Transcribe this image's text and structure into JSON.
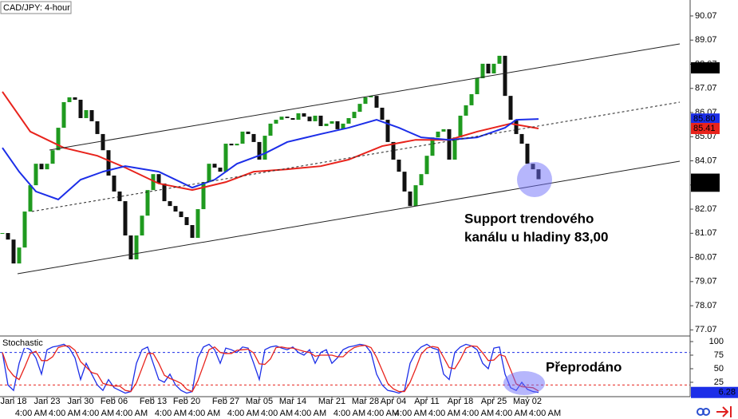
{
  "chart_data": [
    {
      "type": "candlestick",
      "title": "CAD/JPY: 4-hour",
      "up_color": "#1f9a1f",
      "down_color": "#111111",
      "close": [
        81.08,
        80.81,
        79.82,
        80.48,
        81.97,
        83.06,
        83.95,
        83.72,
        83.95,
        84.51,
        85.44,
        86.5,
        86.7,
        86.6,
        85.84,
        86.17,
        85.71,
        85.18,
        84.51,
        83.46,
        82.8,
        82.4,
        80.98,
        79.99,
        80.98,
        81.8,
        82.86,
        83.52,
        83.13,
        82.4,
        82.2,
        81.97,
        81.74,
        81.41,
        80.88,
        82.07,
        83.19,
        83.95,
        83.79,
        83.62,
        84.78,
        84.71,
        84.78,
        85.28,
        85.18,
        84.85,
        84.12,
        85.11,
        85.61,
        85.77,
        85.9,
        85.84,
        85.77,
        86.04,
        85.9,
        85.71,
        85.94,
        85.51,
        85.61,
        85.71,
        85.38,
        85.61,
        85.84,
        86.1,
        86.43,
        86.7,
        86.76,
        86.27,
        85.77,
        84.85,
        84.12,
        83.62,
        82.8,
        82.2,
        83.06,
        83.52,
        84.28,
        85.04,
        85.28,
        85.38,
        84.12,
        85.04,
        85.94,
        86.37,
        86.83,
        87.49,
        88.09,
        87.69,
        88.09,
        88.42,
        86.76,
        85.77,
        85.18,
        84.78,
        83.95,
        83.72,
        83.31
      ],
      "series": [
        {
          "color": "#e8231c",
          "x": [
            0,
            5,
            11,
            17,
            22,
            28,
            34,
            40,
            45,
            51,
            57,
            62,
            68,
            74,
            80,
            85,
            91,
            96
          ],
          "values": [
            86.93,
            85.28,
            84.61,
            84.28,
            83.79,
            83.13,
            82.86,
            83.19,
            83.62,
            83.72,
            83.85,
            84.12,
            84.68,
            84.94,
            84.94,
            85.28,
            85.61,
            85.41
          ]
        },
        {
          "color": "#1c2ee8",
          "x": [
            0,
            3,
            6,
            10,
            14,
            18,
            22,
            28,
            34,
            38,
            42,
            47,
            51,
            57,
            62,
            67,
            71,
            75,
            80,
            85,
            90,
            92,
            96
          ],
          "values": [
            84.61,
            83.62,
            82.8,
            82.47,
            83.29,
            83.62,
            83.85,
            83.62,
            82.96,
            83.29,
            83.95,
            84.38,
            84.85,
            85.18,
            85.44,
            85.77,
            85.44,
            85.04,
            84.94,
            85.04,
            85.44,
            85.77,
            85.8
          ]
        }
      ],
      "ylim": [
        76.85,
        90.73
      ],
      "yticks": [
        90.07,
        89.07,
        88.07,
        87.07,
        86.07,
        85.07,
        84.07,
        83.07,
        82.07,
        81.07,
        80.07,
        79.07,
        78.07,
        77.07
      ],
      "price_labels": [
        {
          "value": 87.92,
          "label": "87.92",
          "color": "#000000"
        },
        {
          "value": 85.8,
          "label": "85.80",
          "color": "#1c2ee8"
        },
        {
          "value": 85.41,
          "label": "85.41",
          "color": "#e8231c"
        },
        {
          "value": 83.02,
          "label": "83.02",
          "color": "#000000"
        },
        {
          "value": 83.31,
          "label": "83.31",
          "color": "#000000"
        }
      ],
      "date_ticks": [
        {
          "value": 2,
          "label": "Jan 18"
        },
        {
          "value": 8,
          "label": "Jan 23"
        },
        {
          "value": 14,
          "label": "Jan 30"
        },
        {
          "value": 20,
          "label": "Feb 06"
        },
        {
          "value": 27,
          "label": "Feb 13"
        },
        {
          "value": 33,
          "label": "Feb 20"
        },
        {
          "value": 40,
          "label": "Feb 27"
        },
        {
          "value": 46,
          "label": "Mar 05"
        },
        {
          "value": 52,
          "label": "Mar 14"
        },
        {
          "value": 59,
          "label": "Mar 21"
        },
        {
          "value": 65,
          "label": "Mar 28"
        },
        {
          "value": 70,
          "label": "Apr 04"
        },
        {
          "value": 76,
          "label": "Apr 11"
        },
        {
          "value": 82,
          "label": "Apr 18"
        },
        {
          "value": 88,
          "label": "Apr 25"
        },
        {
          "value": 94,
          "label": "May 02"
        }
      ],
      "time_labels": [
        "4:00 AM",
        "4:00 AM",
        "4:00 AM",
        "4:00 AM",
        "4:00 AM",
        "4:00 AM",
        "4:00 AM",
        "4:00 AM",
        "4:00 AM",
        "4:00 AM",
        "4:00 AM",
        "4:00 AM",
        "4:00 AM",
        "4:00 AM",
        "4:00 AM",
        "4:00 AM"
      ],
      "annotations": [
        "Support trendového",
        "kanálu u hladiny 83,00"
      ]
    },
    {
      "type": "stochastic",
      "title": "Stochastic",
      "series": [
        {
          "color": "#1c2ee8",
          "values": [
            80,
            20,
            10,
            60,
            90,
            85,
            70,
            40,
            85,
            90,
            92,
            95,
            88,
            70,
            30,
            60,
            40,
            20,
            10,
            30,
            15,
            10,
            5,
            8,
            60,
            85,
            90,
            60,
            30,
            25,
            40,
            20,
            10,
            5,
            8,
            70,
            90,
            95,
            85,
            60,
            88,
            85,
            80,
            90,
            88,
            60,
            30,
            85,
            90,
            92,
            88,
            85,
            90,
            80,
            75,
            85,
            60,
            80,
            85,
            60,
            70,
            85,
            90,
            92,
            95,
            93,
            80,
            40,
            20,
            10,
            8,
            5,
            10,
            60,
            80,
            90,
            95,
            88,
            85,
            40,
            30,
            80,
            90,
            95,
            92,
            85,
            60,
            50,
            88,
            90,
            40,
            15,
            10,
            25,
            12,
            8,
            6.28
          ]
        },
        {
          "color": "#e8231c",
          "values": [
            80,
            50,
            37,
            30,
            53,
            78,
            82,
            65,
            65,
            72,
            89,
            92,
            92,
            84,
            63,
            53,
            43,
            40,
            23,
            20,
            18,
            18,
            10,
            8,
            24,
            51,
            78,
            78,
            60,
            38,
            32,
            28,
            23,
            12,
            8,
            28,
            56,
            85,
            90,
            80,
            78,
            78,
            84,
            85,
            86,
            79,
            59,
            58,
            68,
            89,
            90,
            88,
            88,
            85,
            82,
            80,
            73,
            75,
            75,
            75,
            72,
            72,
            82,
            89,
            92,
            93,
            89,
            71,
            47,
            23,
            13,
            8,
            8,
            25,
            50,
            77,
            88,
            91,
            89,
            71,
            52,
            50,
            67,
            88,
            92,
            91,
            79,
            65,
            66,
            76,
            73,
            48,
            22,
            17,
            16,
            15,
            9
          ]
        }
      ],
      "ylim": [
        0,
        108.8
      ],
      "yticks": [
        100,
        75,
        50,
        25
      ],
      "levels": [
        {
          "value": 80,
          "color": "#1c2ee8"
        },
        {
          "value": 20,
          "color": "#e8231c"
        }
      ],
      "annotation": "Přeprodáno"
    }
  ]
}
